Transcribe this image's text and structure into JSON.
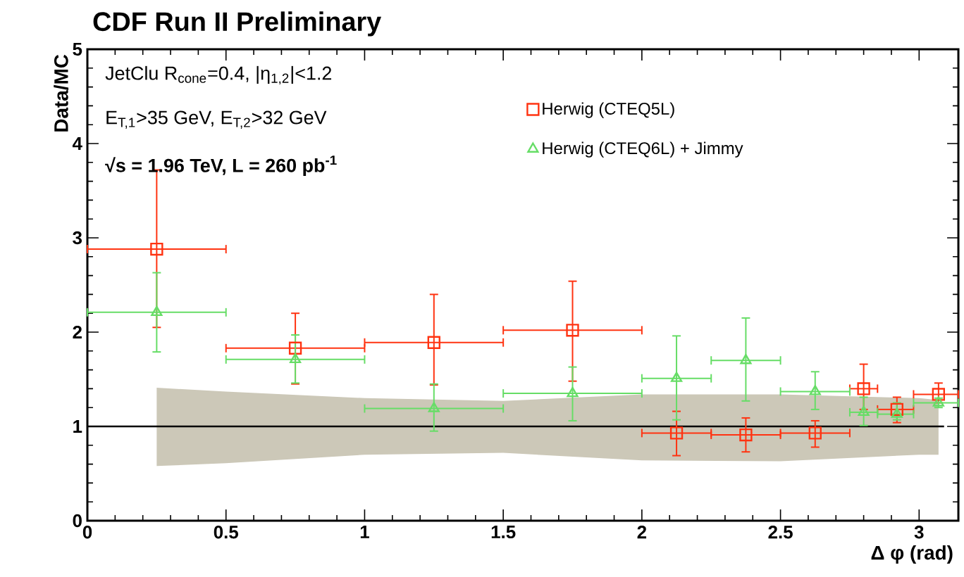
{
  "chart_data": {
    "type": "scatter",
    "title": "CDF Run II Preliminary",
    "xlabel": "Δ φ (rad)",
    "ylabel": "Data/MC",
    "annotations": [
      "JetClu R$_{cone}$=0.4, |η$_{1,2}$|<1.2",
      "E$_{T,1}$>35 GeV, E$_{T,2}$>32 GeV",
      "**√s = 1.96 TeV, L = 260 pb$^{-1}$**"
    ],
    "xlim": [
      0,
      3.1416
    ],
    "ylim": [
      0,
      5
    ],
    "xticks": [
      0,
      0.5,
      1,
      1.5,
      2,
      2.5,
      3
    ],
    "yticks": [
      0,
      1,
      2,
      3,
      4,
      5
    ],
    "grid": false,
    "legend": "top right",
    "series": [
      {
        "type": "line",
        "color": "#000000",
        "x": [
          0,
          0.25,
          0.5,
          1.0,
          1.5,
          2.0,
          2.5,
          3.0,
          3.07,
          3.09
        ],
        "values": [
          1,
          1,
          1,
          1,
          1,
          1,
          1,
          1,
          1,
          1
        ],
        "upper": [
          null,
          1.41,
          1.37,
          1.3,
          1.27,
          1.34,
          1.34,
          1.3,
          1.28,
          null
        ],
        "lower": [
          null,
          0.58,
          0.61,
          0.7,
          0.72,
          0.64,
          0.63,
          0.7,
          0.7,
          null
        ]
      },
      {
        "name": "Herwig (CTEQ5L)",
        "color": "#ff3311",
        "marker": "square",
        "x": [
          0.25,
          0.75,
          1.25,
          1.75,
          2.125,
          2.375,
          2.625,
          2.8,
          2.92,
          3.07
        ],
        "values": [
          2.88,
          1.83,
          1.89,
          2.02,
          0.93,
          0.91,
          0.93,
          1.4,
          1.18,
          1.34
        ],
        "errors": [
          [
            2.05,
            3.72
          ],
          [
            1.45,
            2.2
          ],
          [
            1.44,
            2.4
          ],
          [
            1.48,
            2.54
          ],
          [
            0.69,
            1.16
          ],
          [
            0.73,
            1.09
          ],
          [
            0.78,
            1.06
          ],
          [
            1.18,
            1.66
          ],
          [
            1.04,
            1.31
          ],
          [
            1.25,
            1.46
          ]
        ],
        "xerrors": [
          [
            0,
            0.5
          ],
          [
            0.5,
            1
          ],
          [
            1,
            1.5
          ],
          [
            1.5,
            2
          ],
          [
            2,
            2.25
          ],
          [
            2.25,
            2.5
          ],
          [
            2.5,
            2.75
          ],
          [
            2.75,
            2.85
          ],
          [
            2.85,
            2.98
          ],
          [
            2.98,
            3.1416
          ]
        ]
      },
      {
        "name": "Herwig (CTEQ6L) + Jimmy",
        "color": "#66dd66",
        "marker": "triangle",
        "x": [
          0.25,
          0.75,
          1.25,
          1.75,
          2.125,
          2.375,
          2.625,
          2.8,
          2.92,
          3.07
        ],
        "values": [
          2.21,
          1.71,
          1.19,
          1.35,
          1.51,
          1.7,
          1.37,
          1.15,
          1.13,
          1.25
        ],
        "errors": [
          [
            1.79,
            2.63
          ],
          [
            1.46,
            1.97
          ],
          [
            0.95,
            1.45
          ],
          [
            1.06,
            1.63
          ],
          [
            1.07,
            1.96
          ],
          [
            1.27,
            2.15
          ],
          [
            1.18,
            1.58
          ],
          [
            1.01,
            1.31
          ],
          [
            1.07,
            1.25
          ],
          [
            1.2,
            1.3
          ]
        ],
        "xerrors": [
          [
            0,
            0.5
          ],
          [
            0.5,
            1
          ],
          [
            1,
            1.5
          ],
          [
            1.5,
            2
          ],
          [
            2,
            2.25
          ],
          [
            2.25,
            2.5
          ],
          [
            2.5,
            2.75
          ],
          [
            2.75,
            2.85
          ],
          [
            2.85,
            2.98
          ],
          [
            2.98,
            3.1416
          ]
        ]
      }
    ]
  }
}
